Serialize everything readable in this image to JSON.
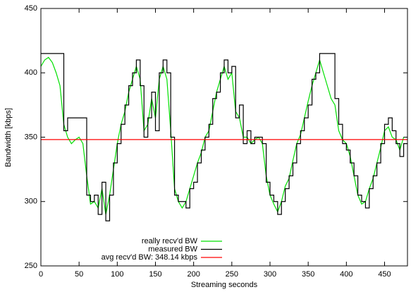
{
  "chart_data": {
    "type": "line",
    "xlabel": "Streaming seconds",
    "ylabel": "Bandwidth [kbps]",
    "x": [
      0,
      5,
      10,
      15,
      20,
      25,
      30,
      35,
      40,
      45,
      50,
      55,
      60,
      65,
      70,
      75,
      80,
      85,
      90,
      95,
      100,
      105,
      110,
      115,
      120,
      125,
      130,
      135,
      140,
      145,
      150,
      155,
      160,
      165,
      170,
      175,
      180,
      185,
      190,
      195,
      200,
      205,
      210,
      215,
      220,
      225,
      230,
      235,
      240,
      245,
      250,
      255,
      260,
      265,
      270,
      275,
      280,
      285,
      290,
      295,
      300,
      305,
      310,
      315,
      320,
      325,
      330,
      335,
      340,
      345,
      350,
      355,
      360,
      365,
      370,
      375,
      380,
      385,
      390,
      395,
      400,
      405,
      410,
      415,
      420,
      425,
      430,
      435,
      440,
      445,
      450,
      455,
      460,
      465,
      470,
      475
    ],
    "series": [
      {
        "name": "really recv'd BW",
        "color": "#00e000",
        "step": false,
        "values": [
          405,
          410,
          412,
          408,
          400,
          390,
          360,
          350,
          345,
          348,
          350,
          345,
          320,
          298,
          300,
          295,
          310,
          290,
          305,
          325,
          345,
          360,
          370,
          385,
          395,
          405,
          395,
          355,
          360,
          380,
          365,
          395,
          405,
          395,
          355,
          310,
          300,
          295,
          300,
          310,
          320,
          330,
          338,
          350,
          355,
          370,
          385,
          395,
          405,
          395,
          400,
          370,
          365,
          350,
          350,
          345,
          348,
          350,
          345,
          320,
          305,
          298,
          292,
          300,
          312,
          318,
          332,
          345,
          352,
          365,
          378,
          390,
          400,
          410,
          400,
          390,
          380,
          375,
          355,
          348,
          345,
          335,
          320,
          305,
          298,
          300,
          310,
          318,
          330,
          342,
          355,
          358,
          350,
          348,
          340,
          350
        ]
      },
      {
        "name": "measured BW",
        "color": "#000000",
        "step": true,
        "values": [
          415,
          415,
          415,
          415,
          415,
          415,
          355,
          365,
          365,
          365,
          365,
          365,
          305,
          300,
          305,
          290,
          315,
          285,
          305,
          330,
          345,
          360,
          375,
          390,
          400,
          410,
          390,
          350,
          365,
          385,
          355,
          400,
          410,
          400,
          350,
          305,
          300,
          300,
          295,
          310,
          315,
          330,
          340,
          350,
          360,
          380,
          385,
          400,
          410,
          400,
          405,
          365,
          375,
          345,
          355,
          345,
          350,
          350,
          345,
          315,
          305,
          300,
          290,
          300,
          310,
          320,
          330,
          345,
          355,
          365,
          375,
          395,
          400,
          415,
          415,
          415,
          415,
          380,
          360,
          345,
          340,
          330,
          320,
          305,
          300,
          295,
          310,
          320,
          330,
          345,
          360,
          365,
          355,
          345,
          335,
          345
        ]
      }
    ],
    "avg_line": {
      "name": "avg recv'd BW: 348.14 kbps",
      "color": "#ff0000",
      "value": 348.14
    },
    "xlim": [
      0,
      480
    ],
    "xticks": [
      0,
      50,
      100,
      150,
      200,
      250,
      300,
      350,
      400,
      450
    ],
    "ylim": [
      250,
      450
    ],
    "yticks": [
      250,
      300,
      350,
      400,
      450
    ],
    "legend": "bottom-left"
  }
}
